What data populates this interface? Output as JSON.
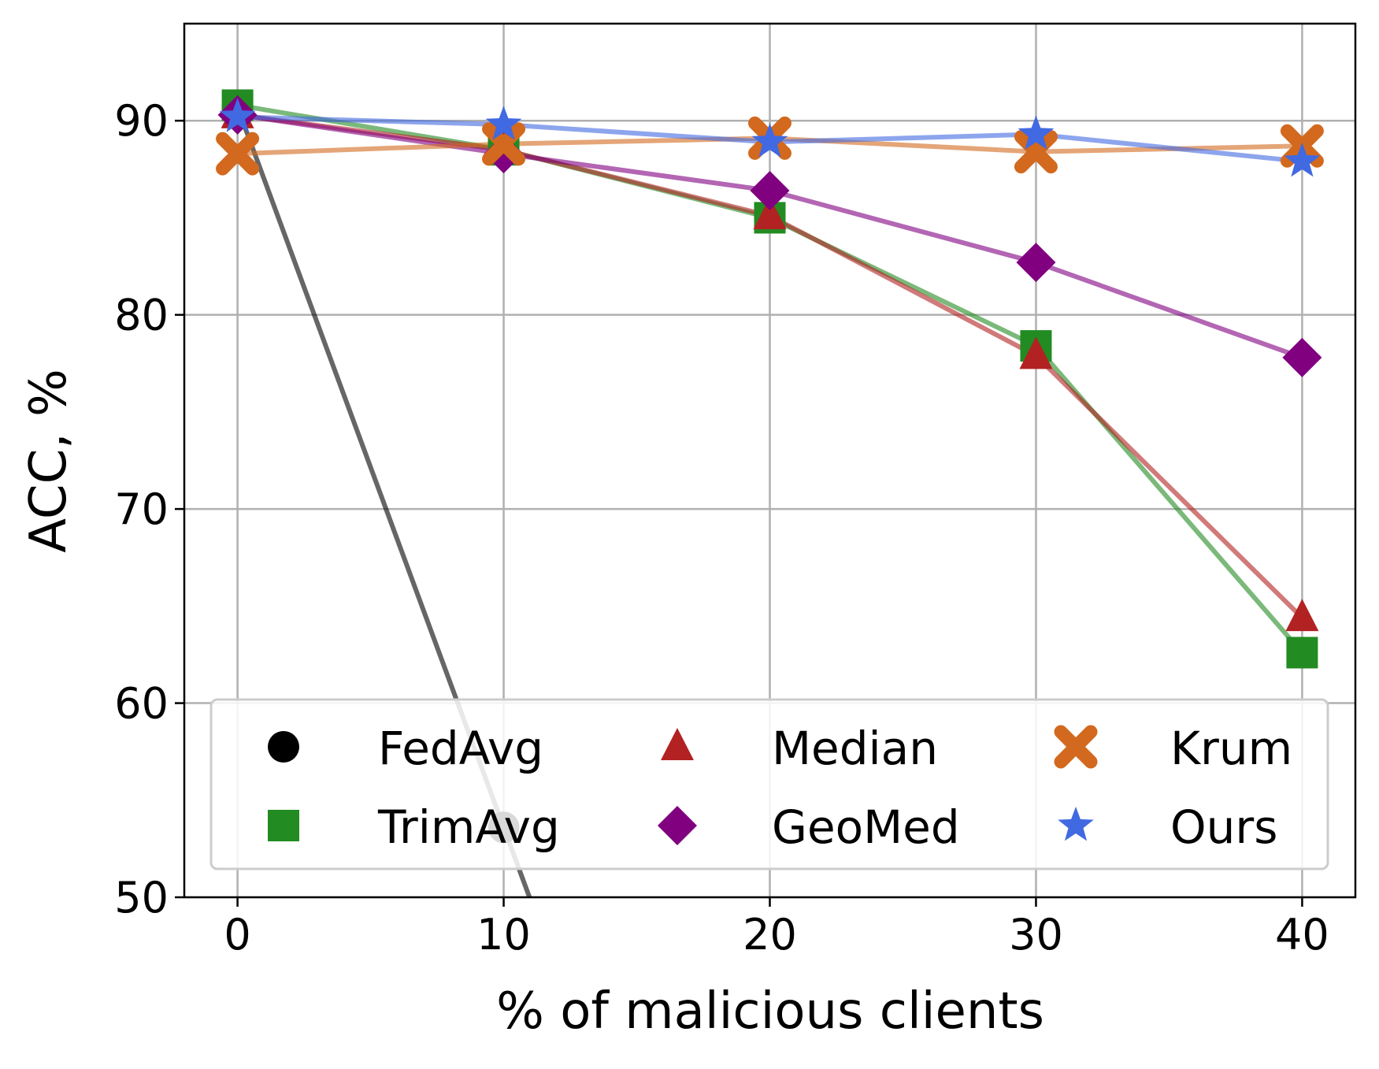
{
  "chart_data": {
    "type": "line",
    "title": "",
    "xlabel": "% of malicious clients",
    "ylabel": "ACC, %",
    "x": [
      0,
      10,
      20,
      30,
      40
    ],
    "xlim": [
      -2,
      42
    ],
    "ylim": [
      50,
      95
    ],
    "xticks": [
      0,
      10,
      20,
      30,
      40
    ],
    "yticks": [
      50,
      60,
      70,
      80,
      90
    ],
    "grid": true,
    "legend_placement": "lower-center",
    "series": [
      {
        "name": "FedAvg",
        "color": "#000000",
        "marker": "circle",
        "values": [
          90.7,
          53.6,
          null,
          null,
          null
        ]
      },
      {
        "name": "TrimAvg",
        "color": "#228b22",
        "marker": "square",
        "values": [
          90.8,
          88.5,
          85.0,
          78.4,
          62.6
        ]
      },
      {
        "name": "Median",
        "color": "#b22222",
        "marker": "triangle",
        "values": [
          90.3,
          88.5,
          85.1,
          77.9,
          64.4
        ]
      },
      {
        "name": "GeoMed",
        "color": "#800080",
        "marker": "diamond",
        "values": [
          90.3,
          88.3,
          86.4,
          82.7,
          77.8
        ]
      },
      {
        "name": "Krum",
        "color": "#d2691e",
        "marker": "x",
        "values": [
          88.3,
          88.8,
          89.1,
          88.4,
          88.7
        ]
      },
      {
        "name": "Ours",
        "color": "#4169e1",
        "marker": "star",
        "values": [
          90.2,
          89.8,
          88.9,
          89.3,
          87.9
        ]
      }
    ]
  }
}
